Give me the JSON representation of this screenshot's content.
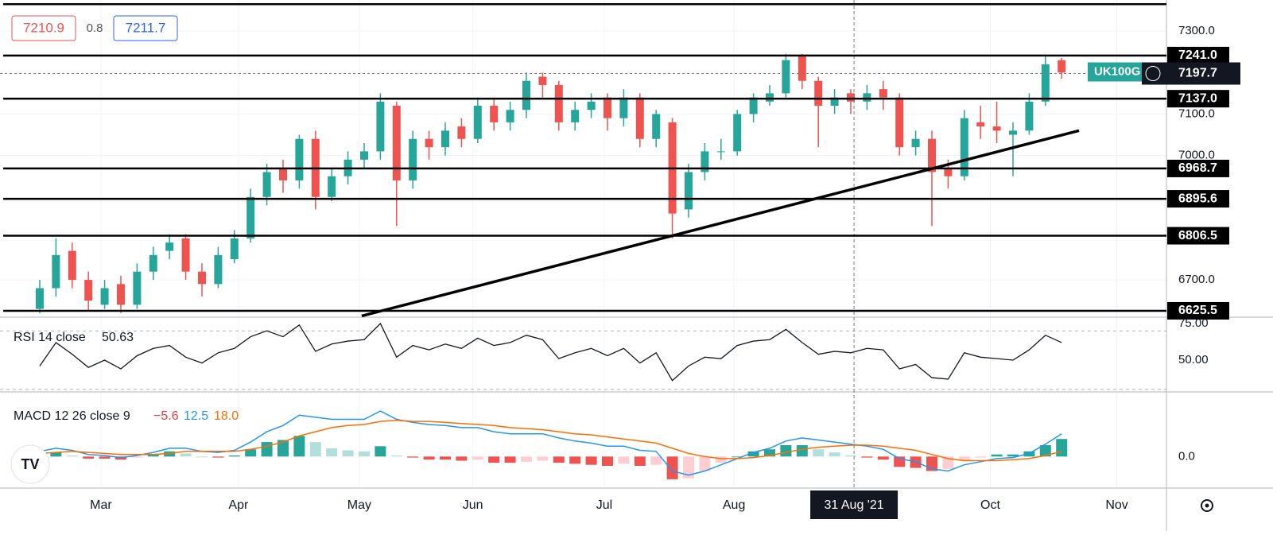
{
  "chart_data": [
    {
      "type": "candlestick",
      "symbol": "UK100G",
      "sell_price": 7210.9,
      "spread": 0.8,
      "buy_price": 7211.7,
      "up_color": "#26a69a",
      "down_color": "#ef5350",
      "open": [
        6630,
        6680,
        6770,
        6700,
        6640,
        6690,
        6640,
        6720,
        6770,
        6800,
        6720,
        6690,
        6750,
        6800,
        6900,
        6970,
        6940,
        7040,
        6900,
        6950,
        6990,
        7010,
        7120,
        6940,
        7040,
        7020,
        7070,
        7040,
        7120,
        7080,
        7110,
        7190,
        7170,
        7080,
        7110,
        7140,
        7090,
        7140,
        7040,
        7080,
        6870,
        6960,
        7010,
        7010,
        7100,
        7130,
        7150,
        7240,
        7180,
        7120,
        7150,
        7130,
        7160,
        7140,
        7020,
        7040,
        6970,
        6950,
        7080,
        7070,
        7050,
        7060,
        7130,
        7230
      ],
      "high": [
        6700,
        6800,
        6790,
        6720,
        6700,
        6710,
        6740,
        6780,
        6810,
        6810,
        6740,
        6780,
        6820,
        6920,
        6980,
        6990,
        7050,
        7060,
        6970,
        7010,
        7030,
        7150,
        7130,
        7060,
        7060,
        7080,
        7090,
        7140,
        7140,
        7130,
        7200,
        7200,
        7180,
        7130,
        7150,
        7150,
        7160,
        7150,
        7110,
        7090,
        6980,
        7030,
        7040,
        7110,
        7150,
        7170,
        7245,
        7245,
        7190,
        7160,
        7160,
        7170,
        7180,
        7150,
        7060,
        7060,
        6990,
        7110,
        7120,
        7130,
        7080,
        7150,
        7240,
        7235
      ],
      "low": [
        6620,
        6660,
        6680,
        6625,
        6630,
        6620,
        6630,
        6700,
        6750,
        6700,
        6660,
        6680,
        6740,
        6790,
        6880,
        6910,
        6920,
        6870,
        6890,
        6930,
        6970,
        6990,
        6830,
        6920,
        6990,
        7000,
        7020,
        7030,
        7060,
        7060,
        7090,
        7140,
        7060,
        7060,
        7090,
        7060,
        7070,
        7020,
        7020,
        6800,
        6850,
        6940,
        6990,
        7000,
        7080,
        7120,
        7140,
        7160,
        7020,
        7100,
        7100,
        7110,
        7110,
        7000,
        7000,
        6830,
        6920,
        6940,
        7040,
        7030,
        6950,
        7050,
        7120,
        7185
      ],
      "close": [
        6680,
        6760,
        6700,
        6650,
        6680,
        6640,
        6720,
        6760,
        6790,
        6720,
        6690,
        6760,
        6800,
        6900,
        6960,
        6940,
        7040,
        6900,
        6950,
        6990,
        7010,
        7130,
        6940,
        7040,
        7020,
        7060,
        7040,
        7120,
        7080,
        7110,
        7180,
        7170,
        7080,
        7110,
        7130,
        7090,
        7140,
        7040,
        7100,
        6860,
        6960,
        7010,
        7010,
        7100,
        7140,
        7150,
        7230,
        7180,
        7120,
        7140,
        7130,
        7150,
        7140,
        7020,
        7040,
        6960,
        6950,
        7090,
        7070,
        7060,
        7060,
        7130,
        7220,
        7200
      ],
      "xlim": [
        -2.45,
        69.46
      ],
      "xticks": [
        {
          "value": 3.77,
          "label": "Mar"
        },
        {
          "value": 12.25,
          "label": "Apr"
        },
        {
          "value": 19.7,
          "label": "May"
        },
        {
          "value": 26.7,
          "label": "Jun"
        },
        {
          "value": 34.8,
          "label": "Jul"
        },
        {
          "value": 42.8,
          "label": "Aug"
        },
        {
          "value": 58.6,
          "label": "Oct"
        },
        {
          "value": 66.4,
          "label": "Nov"
        }
      ],
      "crosshair": {
        "value": 50.2,
        "label": "31 Aug '21"
      },
      "ylim": [
        6612,
        7375
      ],
      "yticks": [
        {
          "value": 6700,
          "label": "6700.0"
        },
        {
          "value": 7000,
          "label": "7000.0"
        },
        {
          "value": 7100,
          "label": "7100.0"
        },
        {
          "value": 7300,
          "label": "7300.0"
        }
      ],
      "levels": [
        7365,
        {
          "value": 7241,
          "label": "7241.0"
        },
        {
          "value": 7137,
          "label": "7137.0"
        },
        {
          "value": 6968.7,
          "label": "6968.7"
        },
        {
          "value": 6895.6,
          "label": "6895.6"
        },
        {
          "value": 6806.5,
          "label": "6806.5"
        },
        {
          "value": 6625.5,
          "label": "6625.5"
        }
      ],
      "last_price": 7197.7,
      "trend_line": {
        "x": [
          19.85,
          64.07
        ],
        "y": [
          6613,
          7060
        ]
      }
    },
    {
      "type": "line",
      "title": "RSI 14 close",
      "current": 50.63,
      "color": "#131722",
      "values": [
        46,
        62,
        54,
        45,
        50,
        44,
        53,
        58,
        60,
        52,
        48,
        55,
        58,
        66,
        70,
        66,
        74,
        56,
        61,
        63,
        64,
        75,
        52,
        60,
        57,
        61,
        58,
        65,
        60,
        62,
        67,
        64,
        51,
        55,
        58,
        53,
        58,
        48,
        55,
        36,
        46,
        52,
        51,
        60,
        63,
        64,
        71,
        62,
        54,
        56,
        55,
        58,
        57,
        44,
        47,
        38,
        37,
        55,
        52,
        51,
        50,
        57,
        67,
        62
      ],
      "ylim": [
        28.8,
        78.8
      ],
      "yticks": [
        {
          "value": 75,
          "label": "75.00"
        },
        {
          "value": 50,
          "label": "50.00"
        }
      ],
      "bands": [
        70,
        30
      ]
    },
    {
      "type": "macd",
      "title": "MACD 12 26 close 9",
      "readout": [
        {
          "value": -5.6,
          "label": "−5.6",
          "color": "#f23645"
        },
        {
          "value": 12.5,
          "label": "12.5",
          "color": "#2196f3"
        },
        {
          "value": 18.0,
          "label": "18.0",
          "color": "#ff6d00"
        }
      ],
      "series": [
        {
          "color": "#2196f3",
          "values": [
            5,
            8,
            6,
            2,
            1,
            -1,
            1,
            4,
            8,
            8,
            5,
            4,
            6,
            14,
            24,
            30,
            40,
            38,
            36,
            36,
            36,
            44,
            36,
            33,
            31,
            30,
            28,
            28,
            24,
            22,
            22,
            22,
            18,
            15,
            13,
            10,
            10,
            6,
            5,
            -14,
            -18,
            -14,
            -8,
            -2,
            4,
            8,
            15,
            18,
            16,
            14,
            12,
            10,
            7,
            -2,
            -5,
            -12,
            -14,
            -8,
            -5,
            -2,
            -1,
            3,
            12,
            22
          ]
        },
        {
          "color": "#ff6d00",
          "values": [
            3,
            4,
            5,
            4,
            3,
            2,
            2,
            2,
            3,
            5,
            5,
            5,
            5,
            7,
            10,
            14,
            20,
            24,
            28,
            30,
            31,
            34,
            35,
            34,
            34,
            33,
            32,
            31,
            30,
            28,
            27,
            26,
            24,
            22,
            21,
            19,
            17,
            15,
            13,
            8,
            3,
            0,
            -2,
            -2,
            -1,
            1,
            4,
            7,
            9,
            10,
            11,
            11,
            10,
            8,
            6,
            2,
            -2,
            -4,
            -4,
            -4,
            -3,
            -2,
            1,
            5
          ]
        }
      ],
      "histogram": [
        2,
        4,
        1,
        -2,
        -2,
        -3,
        -1,
        2,
        5,
        3,
        0,
        -1,
        1,
        7,
        14,
        16,
        20,
        14,
        8,
        6,
        5,
        10,
        1,
        -1,
        -3,
        -3,
        -4,
        -3,
        -6,
        -6,
        -5,
        -4,
        -6,
        -7,
        -8,
        -9,
        -7,
        -9,
        -8,
        -22,
        -21,
        -14,
        -6,
        0,
        5,
        7,
        11,
        11,
        7,
        4,
        1,
        -1,
        -3,
        -10,
        -11,
        -14,
        -12,
        -4,
        -1,
        2,
        2,
        5,
        11,
        17
      ],
      "ylim": [
        -29,
        61
      ],
      "yticks": [
        {
          "value": 0,
          "label": "0.0"
        }
      ]
    }
  ]
}
